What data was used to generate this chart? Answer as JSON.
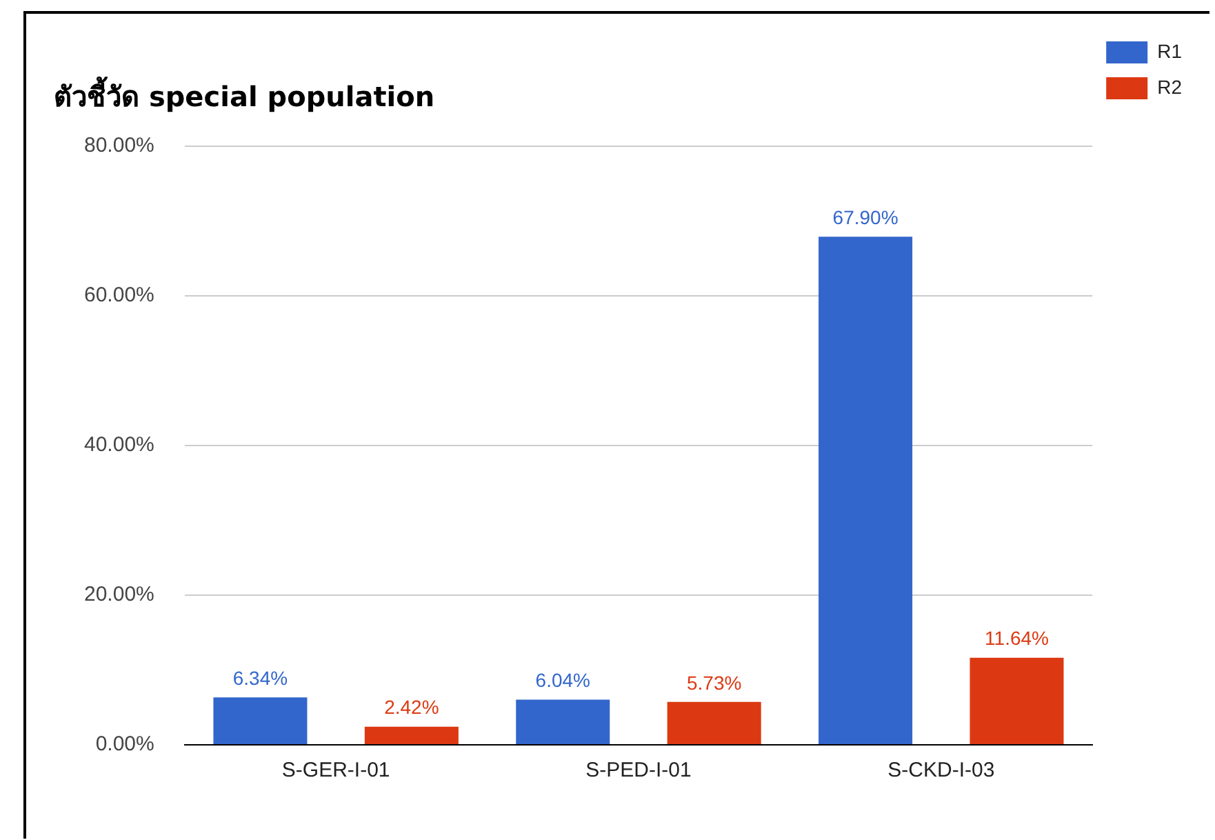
{
  "chart_data": {
    "type": "bar",
    "title": "ตัวชี้วัด special population",
    "categories": [
      "S-GER-I-01",
      "S-PED-I-01",
      "S-CKD-I-03"
    ],
    "series": [
      {
        "name": "R1",
        "color": "#3366cc",
        "values": [
          6.34,
          6.04,
          67.9
        ],
        "value_labels": [
          "6.34%",
          "6.04%",
          "67.90%"
        ]
      },
      {
        "name": "R2",
        "color": "#dc3912",
        "values": [
          2.42,
          5.73,
          11.64
        ],
        "value_labels": [
          "2.42%",
          "5.73%",
          "11.64%"
        ]
      }
    ],
    "ylim": [
      0,
      80
    ],
    "yticks": [
      {
        "value": 0,
        "label": "0.00%"
      },
      {
        "value": 20,
        "label": "20.00%"
      },
      {
        "value": 40,
        "label": "40.00%"
      },
      {
        "value": 60,
        "label": "60.00%"
      },
      {
        "value": 80,
        "label": "80.00%"
      }
    ],
    "grid": "y",
    "legend": "top right"
  }
}
